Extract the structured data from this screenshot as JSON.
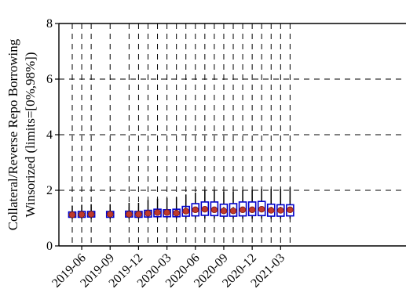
{
  "chart_data": {
    "type": "box",
    "ylabel_line1": "Collateral/Reverse Repo Borrowing",
    "ylabel_line2": "Winsorized (limits=[0%,98%])",
    "ylim": [
      0,
      8
    ],
    "yticks": [
      0,
      2,
      4,
      6,
      8
    ],
    "grid": "dashed",
    "x_start": "2019-05",
    "x_labels": [
      "2019-06",
      "2019-09",
      "2019-12",
      "2020-03",
      "2020-06",
      "2020-09",
      "2020-12",
      "2021-03"
    ],
    "label_positions": [
      1,
      4,
      7,
      10,
      13,
      16,
      19,
      22
    ],
    "box_color": "#0000cc",
    "whisker_color": "#000000",
    "mean_color": "#c0392b",
    "median_color": "#d62728",
    "boxes": [
      {
        "pos": 0,
        "whislo": 0.98,
        "q1": 1.03,
        "med": 1.11,
        "q3": 1.22,
        "whishi": 1.45,
        "mean": 1.12
      },
      {
        "pos": 1,
        "whislo": 0.98,
        "q1": 1.03,
        "med": 1.12,
        "q3": 1.24,
        "whishi": 1.48,
        "mean": 1.13
      },
      {
        "pos": 2,
        "whislo": 0.98,
        "q1": 1.04,
        "med": 1.13,
        "q3": 1.24,
        "whishi": 1.5,
        "mean": 1.14
      },
      {
        "pos": 4,
        "whislo": 0.97,
        "q1": 1.03,
        "med": 1.12,
        "q3": 1.24,
        "whishi": 1.5,
        "mean": 1.14
      },
      {
        "pos": 6,
        "whislo": 0.98,
        "q1": 1.04,
        "med": 1.12,
        "q3": 1.25,
        "whishi": 1.55,
        "mean": 1.14
      },
      {
        "pos": 7,
        "whislo": 0.98,
        "q1": 1.03,
        "med": 1.12,
        "q3": 1.24,
        "whishi": 1.55,
        "mean": 1.14
      },
      {
        "pos": 8,
        "whislo": 0.98,
        "q1": 1.04,
        "med": 1.14,
        "q3": 1.28,
        "whishi": 1.65,
        "mean": 1.17
      },
      {
        "pos": 9,
        "whislo": 0.98,
        "q1": 1.05,
        "med": 1.18,
        "q3": 1.32,
        "whishi": 1.7,
        "mean": 1.2
      },
      {
        "pos": 10,
        "whislo": 0.98,
        "q1": 1.05,
        "med": 1.16,
        "q3": 1.3,
        "whishi": 1.72,
        "mean": 1.2
      },
      {
        "pos": 11,
        "whislo": 0.98,
        "q1": 1.05,
        "med": 1.16,
        "q3": 1.32,
        "whishi": 1.75,
        "mean": 1.18
      },
      {
        "pos": 12,
        "whislo": 0.98,
        "q1": 1.07,
        "med": 1.2,
        "q3": 1.42,
        "whishi": 1.85,
        "mean": 1.25
      },
      {
        "pos": 13,
        "whislo": 0.98,
        "q1": 1.08,
        "med": 1.24,
        "q3": 1.52,
        "whishi": 1.92,
        "mean": 1.3
      },
      {
        "pos": 14,
        "whislo": 0.98,
        "q1": 1.1,
        "med": 1.28,
        "q3": 1.58,
        "whishi": 2.0,
        "mean": 1.32
      },
      {
        "pos": 15,
        "whislo": 0.98,
        "q1": 1.09,
        "med": 1.26,
        "q3": 1.58,
        "whishi": 2.0,
        "mean": 1.3
      },
      {
        "pos": 16,
        "whislo": 0.98,
        "q1": 1.07,
        "med": 1.22,
        "q3": 1.5,
        "whishi": 1.95,
        "mean": 1.26
      },
      {
        "pos": 17,
        "whislo": 0.98,
        "q1": 1.07,
        "med": 1.24,
        "q3": 1.52,
        "whishi": 1.95,
        "mean": 1.26
      },
      {
        "pos": 18,
        "whislo": 0.98,
        "q1": 1.08,
        "med": 1.26,
        "q3": 1.58,
        "whishi": 2.0,
        "mean": 1.3
      },
      {
        "pos": 19,
        "whislo": 0.98,
        "q1": 1.09,
        "med": 1.28,
        "q3": 1.58,
        "whishi": 2.02,
        "mean": 1.3
      },
      {
        "pos": 20,
        "whislo": 0.98,
        "q1": 1.09,
        "med": 1.28,
        "q3": 1.6,
        "whishi": 2.05,
        "mean": 1.32
      },
      {
        "pos": 21,
        "whislo": 0.98,
        "q1": 1.07,
        "med": 1.24,
        "q3": 1.5,
        "whishi": 2.05,
        "mean": 1.28
      },
      {
        "pos": 22,
        "whislo": 0.98,
        "q1": 1.07,
        "med": 1.24,
        "q3": 1.48,
        "whishi": 2.05,
        "mean": 1.28
      },
      {
        "pos": 23,
        "whislo": 0.98,
        "q1": 1.08,
        "med": 1.26,
        "q3": 1.48,
        "whishi": 2.1,
        "mean": 1.3
      }
    ]
  }
}
